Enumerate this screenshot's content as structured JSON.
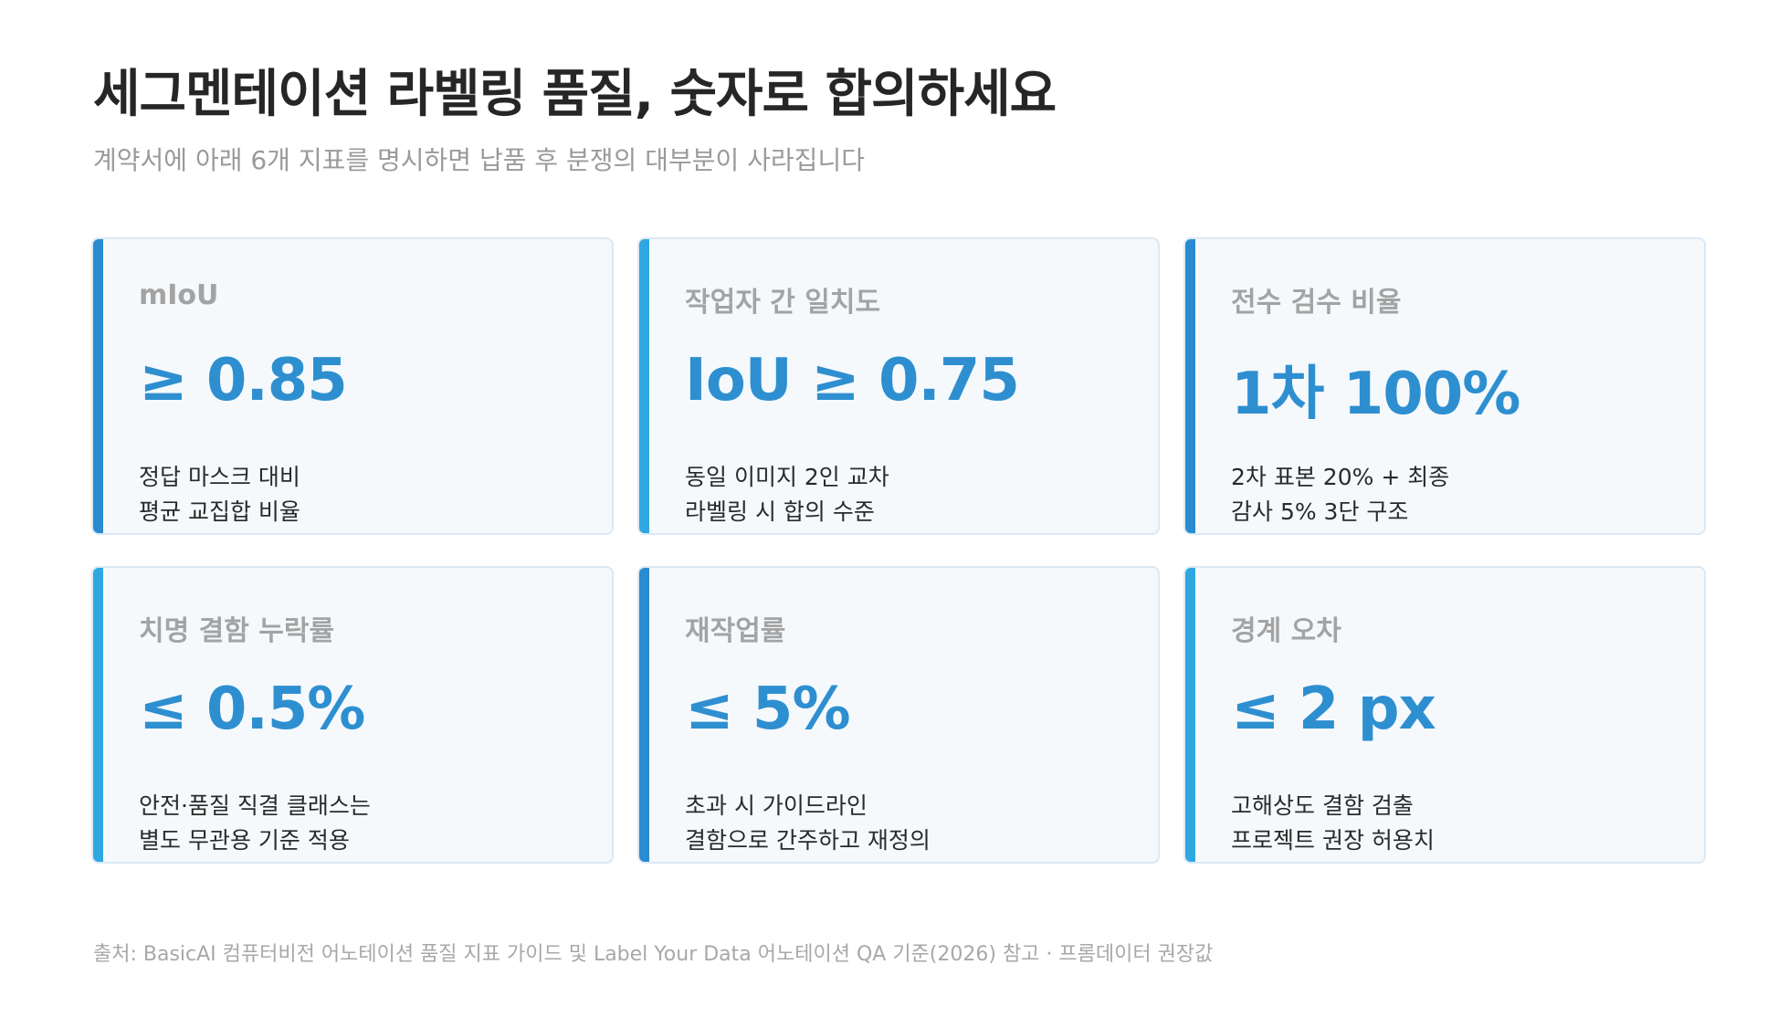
{
  "header": {
    "title": "세그멘테이션 라벨링 품질, 숫자로 합의하세요",
    "subtitle": "계약서에 아래 6개 지표를 명시하면 납품 후 분쟁의 대부분이 사라집니다"
  },
  "cards": [
    {
      "label": "mIoU",
      "value": "≥ 0.85",
      "desc_line1": "정답 마스크 대비",
      "desc_line2": "평균 교집합 비율",
      "accent_color": "#2a8bd0"
    },
    {
      "label": "작업자 간 일치도",
      "value": "IoU ≥ 0.75",
      "desc_line1": "동일 이미지 2인 교차",
      "desc_line2": "라벨링 시 합의 수준",
      "accent_color": "#2fa8e2"
    },
    {
      "label": "전수 검수 비율",
      "value": "1차 100%",
      "desc_line1": "2차 표본 20% + 최종",
      "desc_line2": "감사 5% 3단 구조",
      "accent_color": "#2a8bd0"
    },
    {
      "label": "치명 결함 누락률",
      "value": "≤ 0.5%",
      "desc_line1": "안전·품질 직결 클래스는",
      "desc_line2": "별도 무관용 기준 적용",
      "accent_color": "#2fa8e2"
    },
    {
      "label": "재작업률",
      "value": "≤ 5%",
      "desc_line1": "초과 시 가이드라인",
      "desc_line2": "결함으로 간주하고 재정의",
      "accent_color": "#2a8bd0"
    },
    {
      "label": "경계 오차",
      "value": "≤ 2 px",
      "desc_line1": "고해상도 결함 검출",
      "desc_line2": "프로젝트 권장 허용치",
      "accent_color": "#2fa8e2"
    }
  ],
  "footer": {
    "source": "출처: BasicAI 컴퓨터비전 어노테이션 품질 지표 가이드 및 Label Your Data 어노테이션 QA 기준(2026) 참고 · 프롬데이터 권장값"
  },
  "colors": {
    "value_text": "#2e8fd0",
    "card_background": "#f5f9fc",
    "card_border": "#dbe9f4"
  }
}
